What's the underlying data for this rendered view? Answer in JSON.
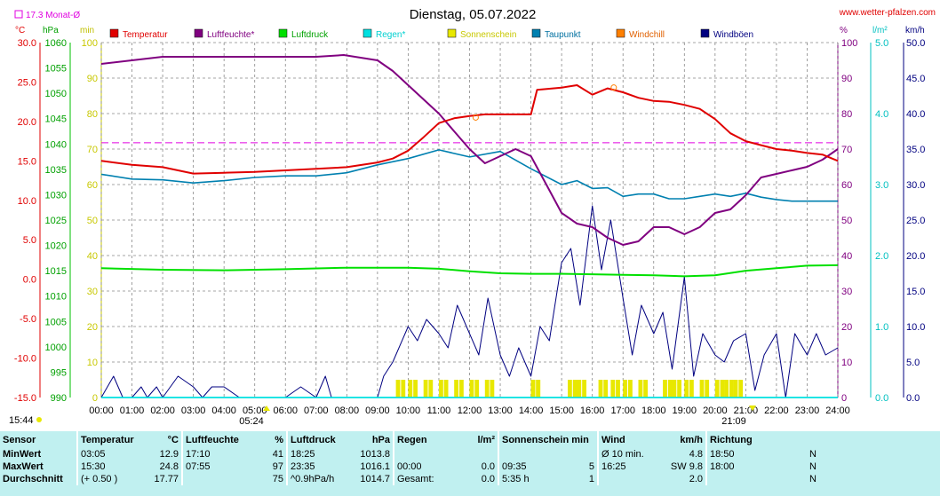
{
  "header": {
    "title": "Dienstag, 05.07.2022",
    "website": "www.wetter-pfalzen.com",
    "month_avg_label": "17.3 Monat-Ø",
    "sunrise": "05:24",
    "sunset": "21:09",
    "daylight": "15:44"
  },
  "colors": {
    "temperatur": "#e00000",
    "luftfeuchte": "#800080",
    "luftdruck": "#00e000",
    "regen": "#00e0e0",
    "sonnenschein": "#e8e800",
    "taupunkt": "#0080b0",
    "windchill": "#ff8000",
    "windboeen": "#000080",
    "month_avg": "#e000e0"
  },
  "chart_data": {
    "type": "line",
    "title": "Dienstag, 05.07.2022",
    "legend": [
      "Temperatur",
      "Luftfeuchte*",
      "Luftdruck",
      "Regen*",
      "Sonnenschein",
      "Taupunkt",
      "Windchill",
      "Windböen"
    ],
    "legend_placement": "top",
    "grid": true,
    "x_ticks": [
      "00:00",
      "01:00",
      "02:00",
      "03:00",
      "04:00",
      "05:00",
      "06:00",
      "07:00",
      "08:00",
      "09:00",
      "10:00",
      "11:00",
      "12:00",
      "13:00",
      "14:00",
      "15:00",
      "16:00",
      "17:00",
      "18:00",
      "19:00",
      "20:00",
      "21:00",
      "22:00",
      "23:00",
      "24:00"
    ],
    "axes": {
      "temp": {
        "unit": "°C",
        "range": [
          -15,
          30
        ],
        "ticks": [
          "30.0",
          "25.0",
          "20.0",
          "15.0",
          "10.0",
          "5.0",
          "0.0",
          "-5.0",
          "-10.0",
          "-15.0"
        ]
      },
      "pressure": {
        "unit": "hPa",
        "range": [
          990,
          1060
        ],
        "ticks": [
          "1060",
          "1055",
          "1050",
          "1045",
          "1040",
          "1035",
          "1030",
          "1025",
          "1020",
          "1015",
          "1010",
          "1005",
          "1000",
          "995",
          "990"
        ]
      },
      "minutes": {
        "unit": "min",
        "range": [
          0,
          100
        ],
        "ticks": [
          "100",
          "90",
          "80",
          "70",
          "60",
          "50",
          "40",
          "30",
          "20",
          "10",
          "0"
        ]
      },
      "humidity": {
        "unit": "%",
        "range": [
          0,
          100
        ],
        "ticks": [
          "100",
          "90",
          "80",
          "70",
          "60",
          "50",
          "40",
          "30",
          "20",
          "10",
          "0"
        ]
      },
      "rain": {
        "unit": "l/m²",
        "range": [
          0,
          5
        ],
        "ticks": [
          "5.0",
          "4.0",
          "3.0",
          "2.0",
          "1.0",
          "0.0"
        ]
      },
      "wind": {
        "unit": "km/h",
        "range": [
          0,
          50
        ],
        "ticks": [
          "50.0",
          "45.0",
          "40.0",
          "35.0",
          "30.0",
          "25.0",
          "20.0",
          "15.0",
          "10.0",
          "5.0",
          "0.0"
        ]
      }
    },
    "month_avg_temp": 17.3,
    "series": [
      {
        "name": "Temperatur",
        "axis": "temp",
        "x": [
          0,
          1,
          2,
          3,
          4,
          5,
          6,
          7,
          8,
          9,
          9.5,
          10,
          10.5,
          11,
          11.5,
          12,
          12.5,
          13,
          13.5,
          14,
          14.2,
          15,
          15.5,
          16,
          16.5,
          17,
          17.5,
          18,
          18.5,
          19,
          19.5,
          20,
          20.5,
          21,
          21.5,
          22,
          22.5,
          23,
          23.5,
          24
        ],
        "values": [
          15.0,
          14.5,
          14.2,
          13.4,
          13.5,
          13.6,
          13.8,
          14.0,
          14.2,
          14.8,
          15.3,
          16.3,
          18.0,
          19.8,
          20.4,
          20.7,
          20.9,
          20.9,
          20.9,
          20.9,
          24.0,
          24.3,
          24.6,
          23.4,
          24.2,
          23.7,
          23.0,
          22.6,
          22.5,
          22.1,
          21.6,
          20.3,
          18.5,
          17.5,
          17.0,
          16.5,
          16.3,
          16.0,
          15.8,
          15.0
        ]
      },
      {
        "name": "Luftfeuchte*",
        "axis": "humidity",
        "x": [
          0,
          1,
          2,
          3,
          4,
          5,
          6,
          7,
          7.9,
          9,
          9.5,
          10,
          10.5,
          11,
          11.5,
          12,
          12.5,
          13,
          13.5,
          14,
          14.5,
          15,
          15.5,
          16,
          16.5,
          17,
          17.5,
          18,
          18.5,
          19,
          19.5,
          20,
          20.5,
          21,
          21.5,
          22,
          22.5,
          23,
          23.5,
          24
        ],
        "values": [
          94,
          95,
          96,
          96,
          96,
          96,
          96,
          96,
          96.5,
          95,
          92,
          88,
          84,
          80,
          75,
          70,
          66,
          68,
          70,
          68,
          60,
          52,
          49,
          48,
          45,
          43,
          44,
          48,
          48,
          46,
          48,
          52,
          53,
          57,
          62,
          63,
          64,
          65,
          67,
          70
        ]
      },
      {
        "name": "Luftdruck",
        "axis": "pressure",
        "x": [
          0,
          2,
          4,
          6,
          8,
          9,
          10,
          11,
          12,
          13,
          14,
          15,
          16,
          17,
          18,
          19,
          20,
          21,
          22,
          23,
          24
        ],
        "values": [
          1015.5,
          1015.2,
          1015.1,
          1015.3,
          1015.6,
          1015.6,
          1015.6,
          1015.4,
          1014.9,
          1014.5,
          1014.4,
          1014.4,
          1014.3,
          1014.2,
          1014.1,
          1013.9,
          1014.1,
          1015.0,
          1015.5,
          1016.0,
          1016.1
        ]
      },
      {
        "name": "Regen*",
        "axis": "rain",
        "x": [
          0,
          24
        ],
        "values": [
          0,
          0
        ]
      },
      {
        "name": "Taupunkt",
        "axis": "temp",
        "x": [
          0,
          1,
          2,
          3,
          4,
          5,
          6,
          7,
          8,
          9,
          10,
          11,
          12,
          13,
          14,
          15,
          15.5,
          16,
          16.5,
          17,
          17.5,
          18,
          18.5,
          19,
          19.5,
          20,
          20.5,
          21,
          21.5,
          22,
          22.5,
          23,
          23.5,
          24
        ],
        "values": [
          13.3,
          12.7,
          12.6,
          12.2,
          12.5,
          12.9,
          13.1,
          13.1,
          13.5,
          14.5,
          15.3,
          16.4,
          15.5,
          16.2,
          14.0,
          12.0,
          12.5,
          11.5,
          11.6,
          10.5,
          10.8,
          10.8,
          10.2,
          10.2,
          10.5,
          10.8,
          10.5,
          10.9,
          10.4,
          10.1,
          9.9,
          9.9,
          9.9,
          9.9
        ]
      },
      {
        "name": "Windböen",
        "axis": "wind",
        "x": [
          0,
          0.4,
          0.7,
          1,
          1.3,
          1.5,
          1.8,
          2,
          2.5,
          3,
          3.3,
          3.6,
          4,
          4.5,
          5,
          5.5,
          6,
          6.5,
          7,
          7.3,
          7.5,
          8,
          8.5,
          9,
          9.2,
          9.5,
          10,
          10.3,
          10.6,
          11,
          11.3,
          11.6,
          12,
          12.3,
          12.6,
          13,
          13.3,
          13.6,
          14,
          14.3,
          14.6,
          15,
          15.3,
          15.6,
          16,
          16.3,
          16.6,
          17,
          17.3,
          17.6,
          18,
          18.3,
          18.6,
          19,
          19.3,
          19.6,
          20,
          20.3,
          20.6,
          21,
          21.3,
          21.6,
          22,
          22.3,
          22.6,
          23,
          23.3,
          23.6,
          24
        ],
        "values": [
          0,
          3,
          0,
          0,
          1.5,
          0,
          1.5,
          0,
          3,
          1.5,
          0,
          1.5,
          1.5,
          0,
          0,
          0,
          0,
          1.5,
          0,
          3,
          0,
          0,
          0,
          0,
          3,
          5,
          10,
          8,
          11,
          9,
          7,
          13,
          9,
          6,
          14,
          6,
          3,
          7,
          3,
          10,
          8,
          19,
          21,
          13,
          27,
          18,
          25,
          14,
          6,
          13,
          9,
          12,
          4,
          17,
          3,
          9,
          6,
          5,
          8,
          9,
          1,
          6,
          9,
          0,
          9,
          6,
          9,
          6,
          7
        ]
      },
      {
        "name": "Sonnenschein",
        "axis": "minutes",
        "x": [
          9.6,
          10,
          10.5,
          11,
          11.5,
          12,
          12.5,
          14,
          14,
          15.2,
          15.5,
          16.2,
          16.6,
          17,
          17.5,
          18.3,
          18.6,
          19,
          19.5,
          20,
          20.3,
          20.6
        ],
        "values": [
          5,
          5,
          5,
          5,
          5,
          5,
          5,
          5,
          5,
          5,
          5,
          5,
          5,
          5,
          5,
          5,
          5,
          5,
          5,
          5,
          5,
          5
        ]
      }
    ],
    "windchill_markers": [
      {
        "x": 12.2,
        "y": 20.5
      },
      {
        "x": 16.7,
        "y": 24.3
      }
    ]
  },
  "stats": {
    "headers": {
      "sensor": "Sensor",
      "temp": "Temperatur",
      "temp_unit": "°C",
      "hum": "Luftfeuchte",
      "hum_unit": "%",
      "press": "Luftdruck",
      "press_unit": "hPa",
      "rain": "Regen",
      "rain_unit": "l/m²",
      "sun": "Sonnenschein min",
      "wind": "Wind",
      "wind_unit": "km/h",
      "dir": "Richtung"
    },
    "rows": [
      {
        "label": "MinWert",
        "t_time": "03:05",
        "t_val": "12.9",
        "h_time": "17:10",
        "h_val": "41",
        "p_time": "18:25",
        "p_val": "1013.8",
        "r_time": "",
        "r_val": "",
        "s_time": "",
        "s_val": "",
        "w_lab": "Ø 10 min.",
        "w_val": "4.8",
        "d_time": "18:50",
        "d_val": "N"
      },
      {
        "label": "MaxWert",
        "t_time": "15:30",
        "t_val": "24.8",
        "h_time": "07:55",
        "h_val": "97",
        "p_time": "23:35",
        "p_val": "1016.1",
        "r_time": "00:00",
        "r_val": "0.0",
        "s_time": "09:35",
        "s_val": "5",
        "w_lab": "16:25",
        "w_val": "SW 9.8",
        "d_time": "18:00",
        "d_val": "N"
      },
      {
        "label": "Durchschnitt",
        "t_time": "(+ 0.50 )",
        "t_val": "17.77",
        "h_time": "",
        "h_val": "75",
        "p_time": "^0.9hPa/h",
        "p_val": "1014.7",
        "r_time": "Gesamt:",
        "r_val": "0.0",
        "s_time": "5:35 h",
        "s_val": "1",
        "w_lab": "",
        "w_val": "2.0",
        "d_time": "",
        "d_val": "N"
      }
    ]
  }
}
